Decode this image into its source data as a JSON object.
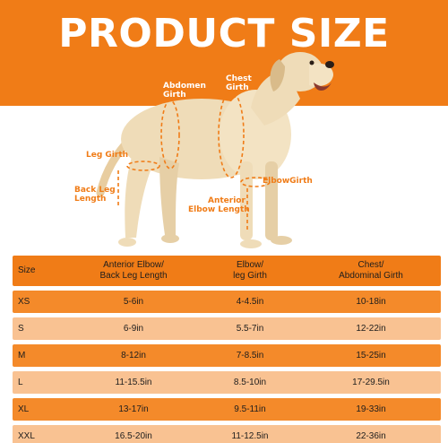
{
  "title": "PRODUCT SIZE",
  "labels": {
    "abdomen": [
      "Abdomen",
      "Girth"
    ],
    "chest": [
      "Chest",
      "Girth"
    ],
    "leg_girth": "Leg Girth",
    "back_leg": [
      "Back Leg",
      "Length"
    ],
    "elbow_girth": "ElbowGirth",
    "anterior_elbow": [
      "Anterior",
      "Elbow Length"
    ]
  },
  "table": {
    "headers": [
      "Size",
      "Anterior Elbow/\nBack Leg Length",
      "Elbow/\nleg Girth",
      "Chest/\nAbdominal Girth"
    ],
    "rows": [
      [
        "XS",
        "5-6in",
        "4-4.5in",
        "10-18in"
      ],
      [
        "S",
        "6-9in",
        "5.5-7in",
        "12-22in"
      ],
      [
        "M",
        "8-12in",
        "7-8.5in",
        "15-25in"
      ],
      [
        "L",
        "11-15.5in",
        "8.5-10in",
        "17-29.5in"
      ],
      [
        "XL",
        "13-17in",
        "9.5-11in",
        "19-33in"
      ],
      [
        "XXL",
        "16.5-20in",
        "11-12.5in",
        "22-36in"
      ]
    ]
  },
  "colors": {
    "accent": "#f07c17",
    "accent_light": "#f9c292",
    "text": "#1d1d1d"
  }
}
